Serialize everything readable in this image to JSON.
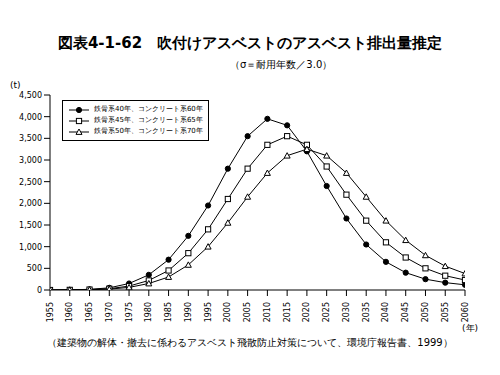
{
  "chart_data": {
    "type": "line",
    "title": "図表4-1-62　吹付けアスベストのアスベスト排出量推定",
    "subtitle": "（σ＝耐用年数／3.0）",
    "y_label": "(t)",
    "x_label": "(年)",
    "source": "（建築物の解体・撤去に係わるアスベスト飛散防止対策について、環境庁報告書、1999）",
    "x": [
      1955,
      1960,
      1965,
      1970,
      1975,
      1980,
      1985,
      1990,
      1995,
      2000,
      2005,
      2010,
      2015,
      2020,
      2025,
      2030,
      2035,
      2040,
      2045,
      2050,
      2055,
      2060
    ],
    "series": [
      {
        "name": "鉄骨系40年、コンクリート系60年",
        "color": "#000000",
        "marker": "circle",
        "values": [
          0,
          5,
          15,
          50,
          150,
          350,
          700,
          1250,
          1950,
          2800,
          3550,
          3950,
          3800,
          3200,
          2400,
          1650,
          1050,
          650,
          400,
          250,
          170,
          120
        ]
      },
      {
        "name": "鉄骨系45年、コンクリート系65年",
        "color": "#000000",
        "marker": "square",
        "values": [
          0,
          3,
          10,
          30,
          90,
          220,
          450,
          850,
          1400,
          2100,
          2800,
          3350,
          3550,
          3350,
          2850,
          2200,
          1600,
          1100,
          750,
          500,
          330,
          230
        ]
      },
      {
        "name": "鉄骨系50年、コンクリート系70年",
        "color": "#000000",
        "marker": "triangle",
        "values": [
          0,
          2,
          6,
          20,
          60,
          150,
          300,
          580,
          1000,
          1550,
          2150,
          2700,
          3100,
          3250,
          3100,
          2700,
          2150,
          1600,
          1150,
          800,
          550,
          380
        ]
      }
    ],
    "xlim": [
      1955,
      2060
    ],
    "xticks": [
      1955,
      1960,
      1965,
      1970,
      1975,
      1980,
      1985,
      1990,
      1995,
      2000,
      2005,
      2010,
      2015,
      2020,
      2025,
      2030,
      2035,
      2040,
      2045,
      2050,
      2055,
      2060
    ],
    "ylim": [
      0,
      4500
    ],
    "yticks": [
      0,
      500,
      {
        "value": 1000,
        "label": "1,000"
      },
      {
        "value": 1500,
        "label": "1,500"
      },
      {
        "value": 2000,
        "label": "2,000"
      },
      {
        "value": 2500,
        "label": "2,500"
      },
      {
        "value": 3000,
        "label": "3,000"
      },
      {
        "value": 3500,
        "label": "3,500"
      },
      {
        "value": 4000,
        "label": "4,000"
      },
      {
        "value": 4500,
        "label": "4,500"
      }
    ],
    "grid": false,
    "legend": "upper left"
  }
}
